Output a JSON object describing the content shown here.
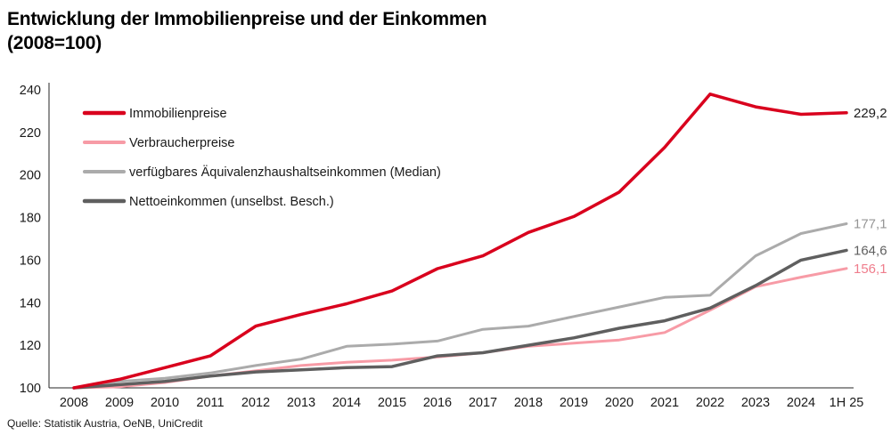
{
  "header": {
    "title_line1": "Entwicklung der Immobilienpreise und der Einkommen",
    "title_line2": "(2008=100)"
  },
  "source": "Quelle: Statistik Austria, OeNB, UniCredit",
  "chart_data": {
    "type": "line",
    "title": "Entwicklung der Immobilienpreise und der Einkommen (2008=100)",
    "categories": [
      "2008",
      "2009",
      "2010",
      "2011",
      "2012",
      "2013",
      "2014",
      "2015",
      "2016",
      "2017",
      "2018",
      "2019",
      "2020",
      "2021",
      "2022",
      "2023",
      "2024",
      "1H 25"
    ],
    "ylim": [
      100,
      240
    ],
    "yticks": [
      100,
      120,
      140,
      160,
      180,
      200,
      220,
      240
    ],
    "grid": false,
    "legend_position": "top-left-inside",
    "axis_color": "#262626",
    "text_color": "#1a1a1a",
    "draw_order": [
      2,
      1,
      3,
      0
    ],
    "series": [
      {
        "name": "Immobilienpreise",
        "color": "#d9001d",
        "width": 3.5,
        "values": [
          100,
          104,
          109.5,
          115,
          129,
          134.5,
          139.5,
          145.5,
          156,
          162,
          173,
          180.5,
          192,
          213,
          238,
          232,
          228.5,
          229.2
        ],
        "end_label": "229,2",
        "end_label_color": "#1a1a1a"
      },
      {
        "name": "Verbraucherpreise",
        "color": "#f79ba6",
        "width": 3,
        "values": [
          100,
          100.5,
          102.5,
          105.5,
          108,
          110.5,
          112,
          113,
          114.5,
          116.5,
          119.5,
          121,
          122.5,
          126,
          136.5,
          147.5,
          152,
          156.1
        ],
        "end_label": "156,1",
        "end_label_color": "#ef7d8c"
      },
      {
        "name": "verfügbares Äquivalenzhaushaltseinkommen (Median)",
        "color": "#ababab",
        "width": 3,
        "values": [
          100,
          103,
          104.5,
          107,
          110.5,
          113.5,
          119.5,
          120.5,
          122,
          127.5,
          129,
          133.5,
          138,
          142.5,
          143.5,
          162,
          172.5,
          177.1
        ],
        "end_label": "177,1",
        "end_label_color": "#959595"
      },
      {
        "name": "Nettoeinkommen (unselbst. Besch.)",
        "color": "#5f5f5f",
        "width": 3.5,
        "values": [
          100,
          101.5,
          103,
          105.5,
          107.5,
          108.5,
          109.5,
          110,
          115,
          116.5,
          120,
          123.5,
          128,
          131.5,
          137.5,
          148,
          160,
          164.6
        ],
        "end_label": "164,6",
        "end_label_color": "#5f5f5f"
      }
    ]
  }
}
